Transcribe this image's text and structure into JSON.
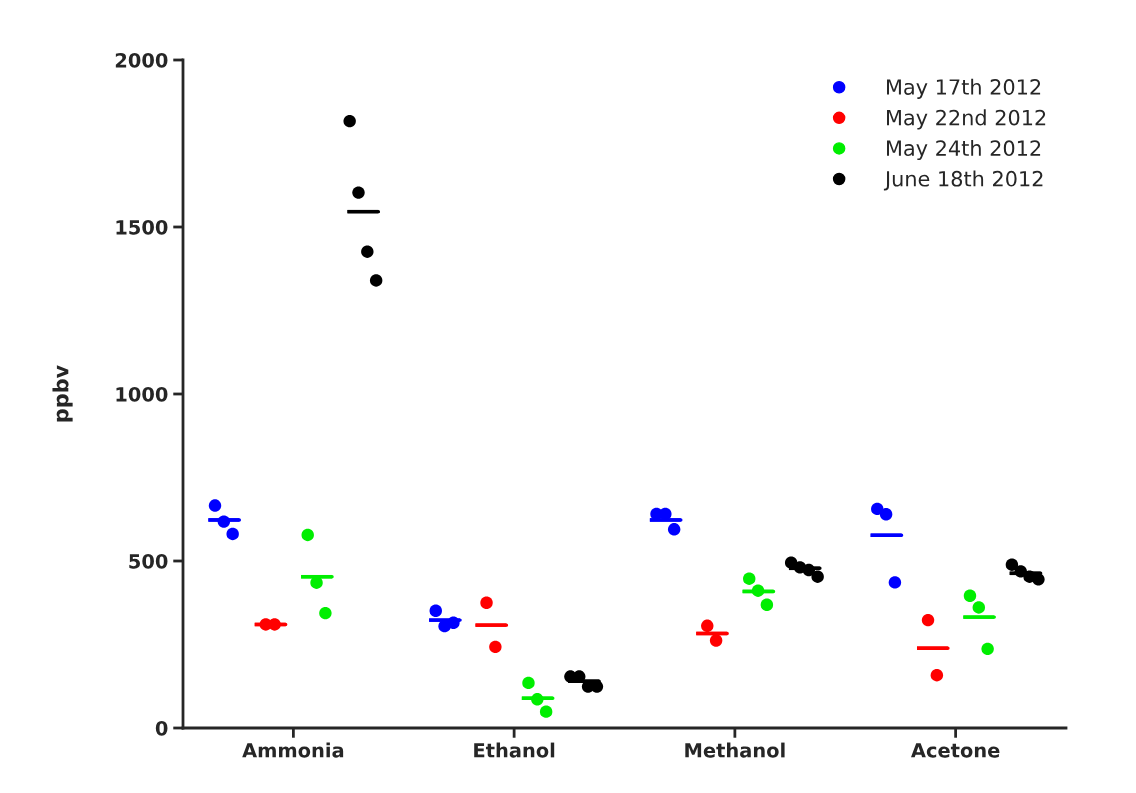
{
  "chart_data": {
    "type": "scatter",
    "ylabel": "ppbv",
    "ylim": [
      0,
      2000
    ],
    "yticks": [
      0,
      500,
      1000,
      1500,
      2000
    ],
    "categories": [
      "Ammonia",
      "Ethanol",
      "Methanol",
      "Acetone"
    ],
    "marker": "circle",
    "legend": "top right",
    "grid": false,
    "series": [
      {
        "name": "May 17th 2012",
        "color": "#0000ff",
        "x": [
          "Ammonia",
          "Ammonia",
          "Ammonia",
          "Ethanol",
          "Ethanol",
          "Ethanol",
          "Methanol",
          "Methanol",
          "Methanol",
          "Acetone",
          "Acetone",
          "Acetone"
        ],
        "values": [
          666,
          618,
          581,
          351,
          305,
          315,
          641,
          641,
          595,
          656,
          640,
          436
        ]
      },
      {
        "name": "May 22nd 2012",
        "color": "#ff0000",
        "x": [
          "Ammonia",
          "Ammonia",
          "Ethanol",
          "Ethanol",
          "Methanol",
          "Methanol",
          "Acetone",
          "Acetone"
        ],
        "values": [
          310,
          310,
          375,
          243,
          306,
          262,
          323,
          158
        ]
      },
      {
        "name": "May 24th 2012",
        "color": "#00ee00",
        "x": [
          "Ammonia",
          "Ammonia",
          "Ammonia",
          "Ethanol",
          "Ethanol",
          "Ethanol",
          "Methanol",
          "Methanol",
          "Methanol",
          "Acetone",
          "Acetone",
          "Acetone"
        ],
        "values": [
          578,
          435,
          344,
          135,
          86,
          49,
          447,
          411,
          369,
          396,
          361,
          237
        ]
      },
      {
        "name": "June 18th 2012",
        "color": "#000000",
        "x": [
          "Ammonia",
          "Ammonia",
          "Ammonia",
          "Ammonia",
          "Ethanol",
          "Ethanol",
          "Ethanol",
          "Ethanol",
          "Methanol",
          "Methanol",
          "Methanol",
          "Methanol",
          "Acetone",
          "Acetone",
          "Acetone",
          "Acetone"
        ],
        "values": [
          1817,
          1603,
          1426,
          1340,
          154,
          154,
          124,
          124,
          495,
          481,
          473,
          453,
          489,
          469,
          453,
          445
        ]
      },
      {
        "type": "box",
        "color": "#0000ff",
        "boxes": [
          {
            "low": 623,
            "q1": 623,
            "median": 623,
            "q3": 623,
            "high": 623
          },
          {
            "low": 323,
            "q1": 323,
            "median": 323,
            "q3": 323,
            "high": 323
          },
          {
            "low": 623,
            "q1": 623,
            "median": 623,
            "q3": 623,
            "high": 623
          },
          {
            "low": 577,
            "q1": 577,
            "median": 577,
            "q3": 577,
            "high": 577
          }
        ]
      },
      {
        "type": "box",
        "color": "#ff0000",
        "boxes": [
          {
            "low": 310,
            "q1": 310,
            "median": 310,
            "q3": 310,
            "high": 310
          },
          {
            "low": 308,
            "q1": 308,
            "median": 308,
            "q3": 308,
            "high": 308
          },
          {
            "low": 283,
            "q1": 283,
            "median": 283,
            "q3": 283,
            "high": 283
          },
          {
            "low": 239,
            "q1": 239,
            "median": 239,
            "q3": 239,
            "high": 239
          }
        ]
      },
      {
        "type": "box",
        "color": "#00ee00",
        "boxes": [
          {
            "low": 453,
            "q1": 453,
            "median": 453,
            "q3": 453,
            "high": 453
          },
          {
            "low": 89,
            "q1": 89,
            "median": 89,
            "q3": 89,
            "high": 89
          },
          {
            "low": 409,
            "q1": 409,
            "median": 409,
            "q3": 409,
            "high": 409
          },
          {
            "low": 332,
            "q1": 332,
            "median": 332,
            "q3": 332,
            "high": 332
          }
        ]
      },
      {
        "type": "box",
        "color": "#000000",
        "boxes": [
          {
            "low": 1546,
            "q1": 1546,
            "median": 1546,
            "q3": 1546,
            "high": 1546
          },
          {
            "low": 140,
            "q1": 140,
            "median": 140,
            "q3": 140,
            "high": 140
          },
          {
            "low": 478,
            "q1": 478,
            "median": 478,
            "q3": 478,
            "high": 478
          },
          {
            "low": 463,
            "q1": 463,
            "median": 463,
            "q3": 463,
            "high": 463
          }
        ]
      }
    ]
  }
}
